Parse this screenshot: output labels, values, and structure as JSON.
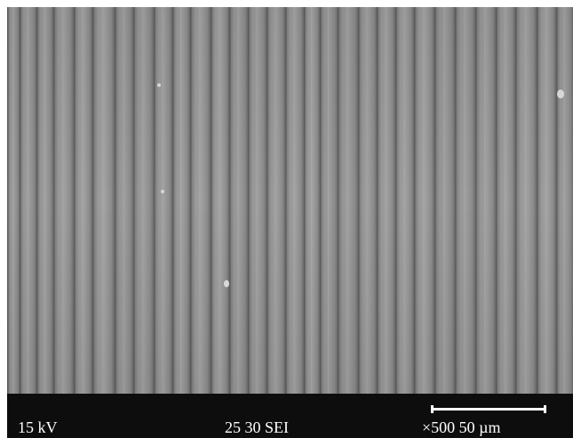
{
  "micrograph": {
    "accelerating_voltage": "15 kV",
    "detector_info": "25 30 SEI",
    "magnification_and_scale": "×500 50 µm"
  }
}
